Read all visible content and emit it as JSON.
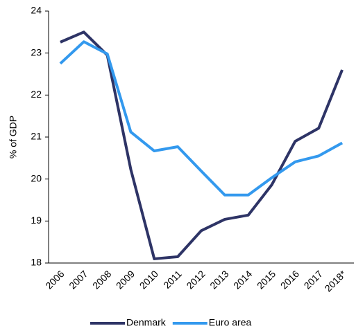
{
  "chart_data": {
    "type": "line",
    "y_label": "% of GDP",
    "categories": [
      "2006",
      "2007",
      "2008",
      "2009",
      "2010",
      "2011",
      "2012",
      "2013",
      "2014",
      "2015",
      "2016",
      "2017",
      "2018*"
    ],
    "series": [
      {
        "name": "Denmark",
        "color": "#2e3466",
        "values": [
          23.26,
          23.5,
          22.95,
          20.23,
          18.1,
          18.15,
          18.77,
          19.04,
          19.14,
          19.86,
          20.9,
          21.21,
          22.6
        ]
      },
      {
        "name": "Euro area",
        "color": "#3399ee",
        "values": [
          22.75,
          23.27,
          22.98,
          21.12,
          20.67,
          20.77,
          20.19,
          19.62,
          19.62,
          20.03,
          20.41,
          20.55,
          20.86
        ]
      }
    ],
    "ylim": [
      18,
      24
    ],
    "yticks": [
      18,
      19,
      20,
      21,
      22,
      23,
      24
    ],
    "legend": "bottom"
  }
}
